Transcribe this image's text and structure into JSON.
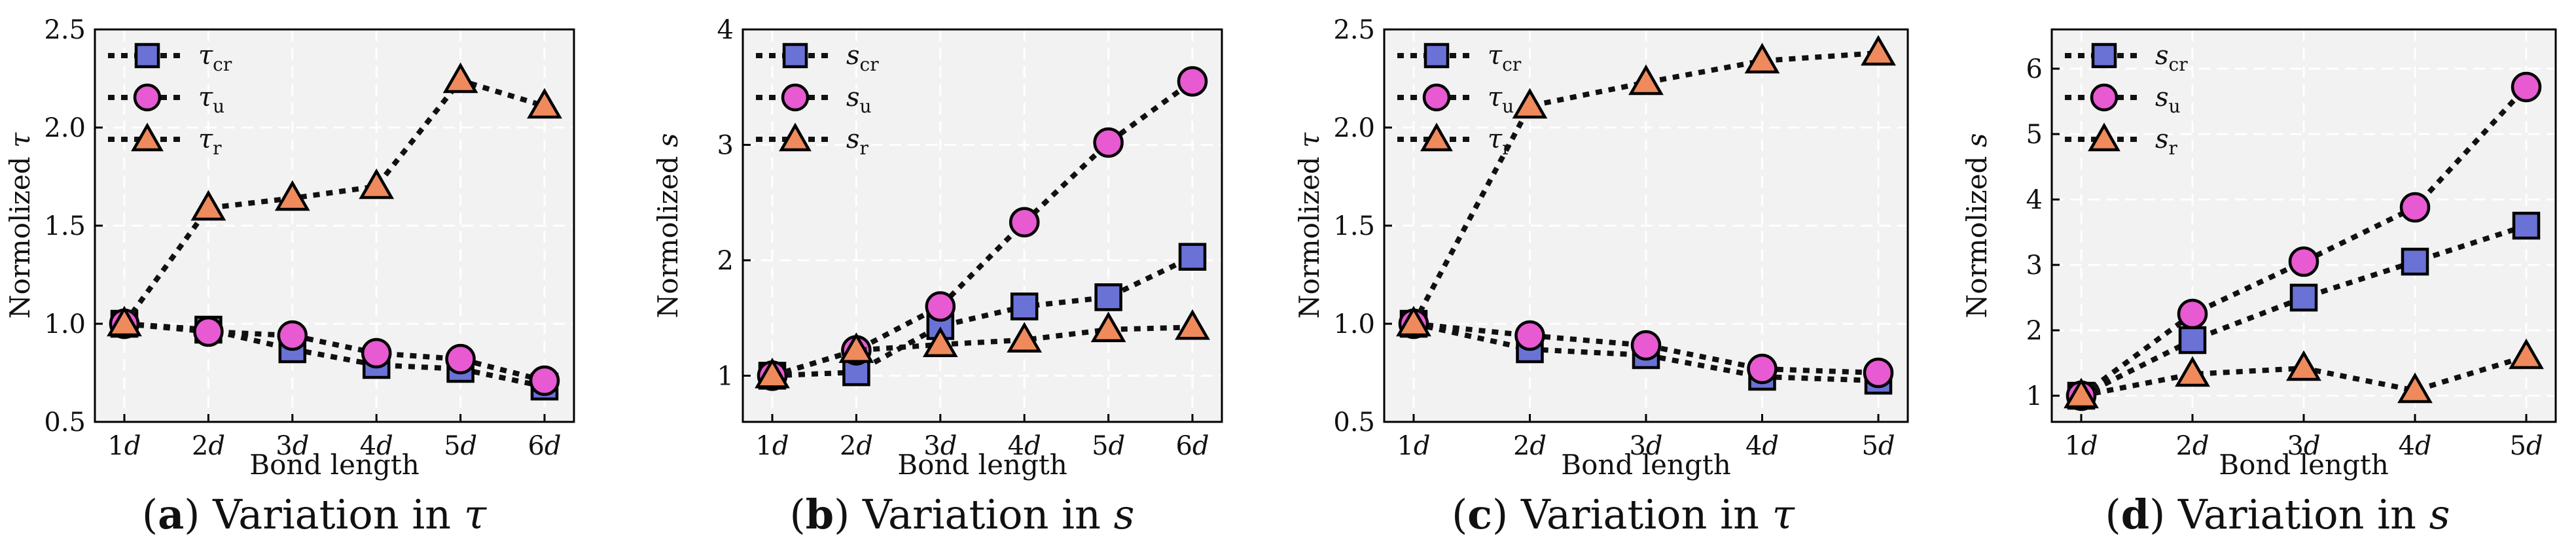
{
  "colors": {
    "cr": "#6a72d6",
    "u": "#e75ad1",
    "r": "#ef8a5c",
    "panel_bg": "#f2f2f2"
  },
  "chart_data": [
    {
      "type": "line",
      "id": "a",
      "caption": {
        "label": "a",
        "text": "Variation in",
        "symbol": "τ"
      },
      "xlabel": "Bond length",
      "ylabel": "Normolized τ",
      "categories": [
        "1d",
        "2d",
        "3d",
        "4d",
        "5d",
        "6d"
      ],
      "ylim": [
        0.5,
        2.5
      ],
      "yticks": [
        "0.5",
        "1.0",
        "1.5",
        "2.0",
        "2.5"
      ],
      "legend_position": "top-left",
      "series": [
        {
          "key": "cr",
          "symbol": "τ",
          "subscript": "cr",
          "marker": "square",
          "values": [
            1.0,
            0.97,
            0.87,
            0.79,
            0.77,
            0.68
          ]
        },
        {
          "key": "u",
          "symbol": "τ",
          "subscript": "u",
          "marker": "circle",
          "values": [
            1.0,
            0.96,
            0.94,
            0.85,
            0.82,
            0.71
          ]
        },
        {
          "key": "r",
          "symbol": "τ",
          "subscript": "r",
          "marker": "triangle",
          "values": [
            1.0,
            1.59,
            1.64,
            1.7,
            2.24,
            2.11
          ]
        }
      ]
    },
    {
      "type": "line",
      "id": "b",
      "caption": {
        "label": "b",
        "text": "Variation in",
        "symbol": "s"
      },
      "xlabel": "Bond length",
      "ylabel": "Normolized s",
      "categories": [
        "1d",
        "2d",
        "3d",
        "4d",
        "5d",
        "6d"
      ],
      "ylim": [
        0.6,
        4.0
      ],
      "yticks": [
        "1",
        "2",
        "3",
        "4"
      ],
      "legend_position": "top-left",
      "series": [
        {
          "key": "cr",
          "symbol": "s",
          "subscript": "cr",
          "marker": "square",
          "values": [
            1.0,
            1.03,
            1.43,
            1.6,
            1.68,
            2.03
          ]
        },
        {
          "key": "u",
          "symbol": "s",
          "subscript": "u",
          "marker": "circle",
          "values": [
            1.0,
            1.22,
            1.6,
            2.33,
            3.02,
            3.55
          ]
        },
        {
          "key": "r",
          "symbol": "s",
          "subscript": "r",
          "marker": "triangle",
          "values": [
            1.0,
            1.22,
            1.27,
            1.31,
            1.4,
            1.42
          ]
        }
      ]
    },
    {
      "type": "line",
      "id": "c",
      "caption": {
        "label": "c",
        "text": "Variation in",
        "symbol": "τ"
      },
      "xlabel": "Bond length",
      "ylabel": "Normolized τ",
      "categories": [
        "1d",
        "2d",
        "3d",
        "4d",
        "5d"
      ],
      "ylim": [
        0.5,
        2.5
      ],
      "yticks": [
        "0.5",
        "1.0",
        "1.5",
        "2.0",
        "2.5"
      ],
      "legend_position": "top-left",
      "series": [
        {
          "key": "cr",
          "symbol": "τ",
          "subscript": "cr",
          "marker": "square",
          "values": [
            1.0,
            0.87,
            0.84,
            0.73,
            0.71
          ]
        },
        {
          "key": "u",
          "symbol": "τ",
          "subscript": "u",
          "marker": "circle",
          "values": [
            1.0,
            0.94,
            0.89,
            0.77,
            0.75
          ]
        },
        {
          "key": "r",
          "symbol": "τ",
          "subscript": "r",
          "marker": "triangle",
          "values": [
            1.0,
            2.11,
            2.23,
            2.34,
            2.38
          ]
        }
      ]
    },
    {
      "type": "line",
      "id": "d",
      "caption": {
        "label": "d",
        "text": "Variation in",
        "symbol": "s"
      },
      "xlabel": "Bond length",
      "ylabel": "Normolized s",
      "categories": [
        "1d",
        "2d",
        "3d",
        "4d",
        "5d"
      ],
      "ylim": [
        0.6,
        6.6
      ],
      "yticks": [
        "1",
        "2",
        "3",
        "4",
        "5",
        "6"
      ],
      "legend_position": "top-left",
      "series": [
        {
          "key": "cr",
          "symbol": "s",
          "subscript": "cr",
          "marker": "square",
          "values": [
            1.0,
            1.85,
            2.5,
            3.05,
            3.6
          ]
        },
        {
          "key": "u",
          "symbol": "s",
          "subscript": "u",
          "marker": "circle",
          "values": [
            1.0,
            2.25,
            3.05,
            3.88,
            5.72
          ]
        },
        {
          "key": "r",
          "symbol": "s",
          "subscript": "r",
          "marker": "triangle",
          "values": [
            1.0,
            1.33,
            1.42,
            1.08,
            1.6
          ]
        }
      ]
    }
  ]
}
